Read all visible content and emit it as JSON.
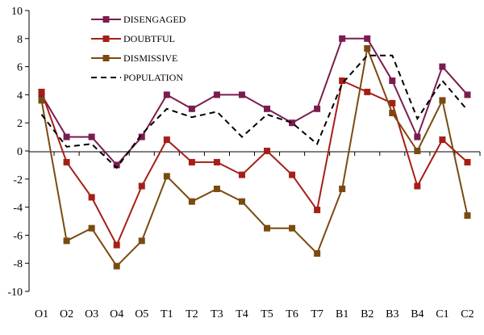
{
  "chart_data": {
    "type": "line",
    "title": "",
    "xlabel": "",
    "ylabel": "",
    "x": [
      "O1",
      "O2",
      "O3",
      "O4",
      "O5",
      "T1",
      "T2",
      "T3",
      "T4",
      "T5",
      "T6",
      "T7",
      "B1",
      "B2",
      "B3",
      "B4",
      "C1",
      "C2"
    ],
    "ylim": [
      -10,
      10
    ],
    "yticks": [
      -10,
      -8,
      -6,
      -4,
      -2,
      0,
      2,
      4,
      6,
      8,
      10
    ],
    "grid": false,
    "legend_position": "top-left",
    "series": [
      {
        "name": "DISENGAGED",
        "color": "#7b1c4f",
        "marker": "square",
        "dash": false,
        "values": [
          4,
          1,
          1,
          -1,
          1,
          4,
          3,
          4,
          4,
          3,
          2,
          3,
          8,
          8,
          5,
          1,
          6,
          4
        ]
      },
      {
        "name": "DOUBTFUL",
        "color": "#a51f16",
        "marker": "square",
        "dash": false,
        "values": [
          4.2,
          -0.8,
          -3.3,
          -6.7,
          -2.5,
          0.8,
          -0.8,
          -0.8,
          -1.7,
          0,
          -1.7,
          -4.2,
          5,
          4.2,
          3.4,
          -2.5,
          0.8,
          -0.8
        ]
      },
      {
        "name": "DISMISSIVE",
        "color": "#7a4a10",
        "marker": "square",
        "dash": false,
        "values": [
          3.6,
          -6.4,
          -5.5,
          -8.2,
          -6.4,
          -1.8,
          -3.6,
          -2.7,
          -3.6,
          -5.5,
          -5.5,
          -7.3,
          -2.7,
          7.3,
          2.7,
          0,
          3.6,
          -4.6
        ]
      },
      {
        "name": "POPULATION",
        "color": "#000000",
        "marker": "none",
        "dash": true,
        "values": [
          2.6,
          0.3,
          0.5,
          -1.2,
          1.2,
          3.0,
          2.4,
          2.8,
          1.0,
          2.6,
          2.0,
          0.5,
          4.8,
          6.8,
          6.8,
          2.3,
          5.0,
          2.9
        ]
      }
    ]
  }
}
